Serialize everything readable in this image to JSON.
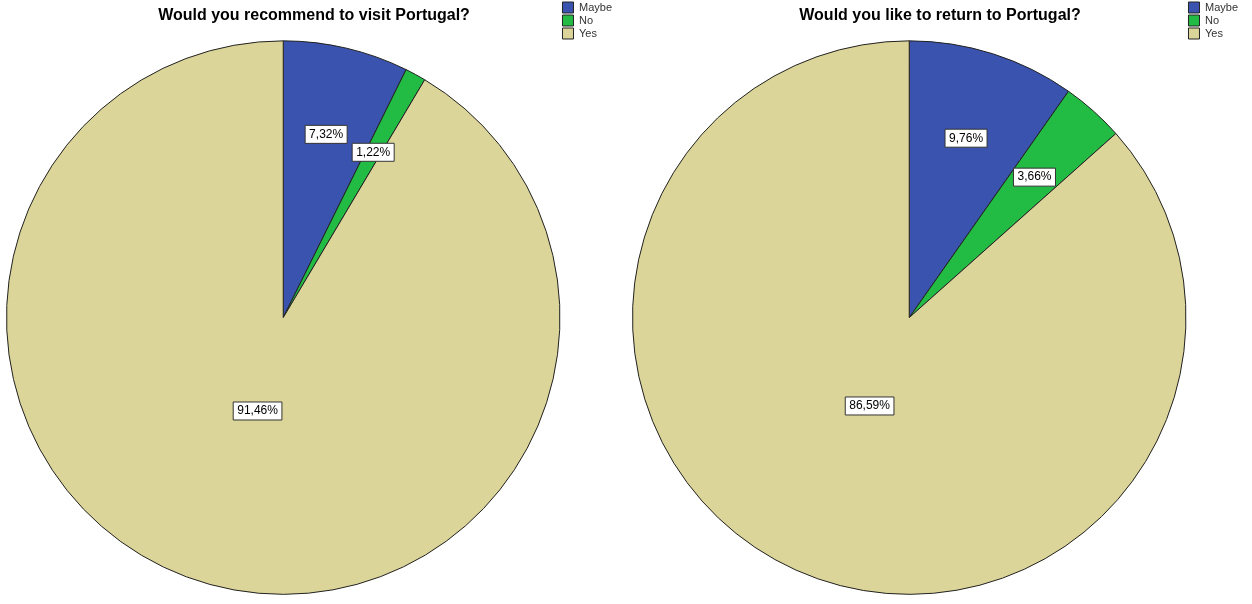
{
  "chart_data": [
    {
      "type": "pie",
      "title": "Would you recommend to visit Portugal?",
      "categories": [
        "Maybe",
        "No",
        "Yes"
      ],
      "values": [
        7.32,
        1.22,
        91.46
      ],
      "colors": [
        "#3a53ae",
        "#22bb44",
        "#dcd59a"
      ],
      "value_labels": [
        "7,32%",
        "1,22%",
        "91,46%"
      ],
      "legend": "top right"
    },
    {
      "type": "pie",
      "title": "Would you like to return to Portugal?",
      "categories": [
        "Maybe",
        "No",
        "Yes"
      ],
      "values": [
        9.76,
        3.66,
        86.59
      ],
      "colors": [
        "#3a53ae",
        "#22bb44",
        "#dcd59a"
      ],
      "value_labels": [
        "9,76%",
        "3,66%",
        "86,59%"
      ],
      "legend": "top right"
    }
  ]
}
